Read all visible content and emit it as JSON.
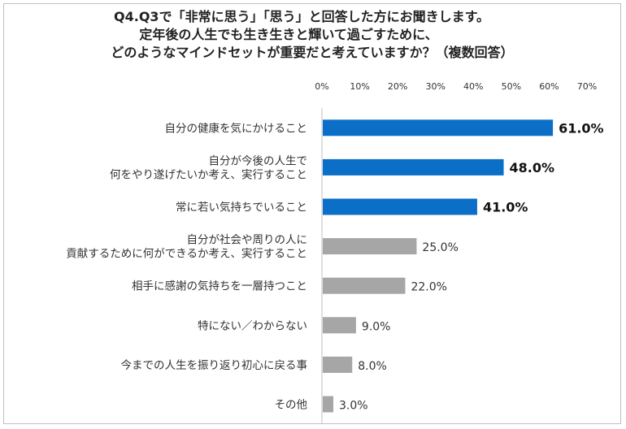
{
  "title_lines": [
    "Q4.Q3で「非常に思う」「思う」と回答した方にお聞きします。",
    "定年後の人生でも生き生きと輝いて過ごすために、",
    "どのようなマインドセットが重要だと考えていますか？（複数回答）"
  ],
  "chart_data": {
    "type": "bar",
    "orientation": "horizontal",
    "categories": [
      [
        "自分の健康を気にかけること"
      ],
      [
        "自分が今後の人生で",
        "何をやり遂げたいか考え、実行すること"
      ],
      [
        "常に若い気持ちでいること"
      ],
      [
        "自分が社会や周りの人に",
        "貢献するために何ができるか考え、実行すること"
      ],
      [
        "相手に感謝の気持ちを一層持つこと"
      ],
      [
        "特にない／わからない"
      ],
      [
        "今までの人生を振り返り初心に戻る事"
      ],
      [
        "その他"
      ]
    ],
    "values": [
      61.0,
      48.0,
      41.0,
      25.0,
      22.0,
      9.0,
      8.0,
      3.0
    ],
    "value_labels": [
      "61.0%",
      "48.0%",
      "41.0%",
      "25.0%",
      "22.0%",
      "9.0%",
      "8.0%",
      "3.0%"
    ],
    "xlim": [
      0,
      70
    ],
    "ticks": [
      "0%",
      "10%",
      "20%",
      "30%",
      "40%",
      "50%",
      "60%",
      "70%"
    ],
    "highlight_top_n": 3,
    "colors": {
      "highlight": "#0b6fc7",
      "other": "#a6a6a6"
    },
    "grid": false
  }
}
